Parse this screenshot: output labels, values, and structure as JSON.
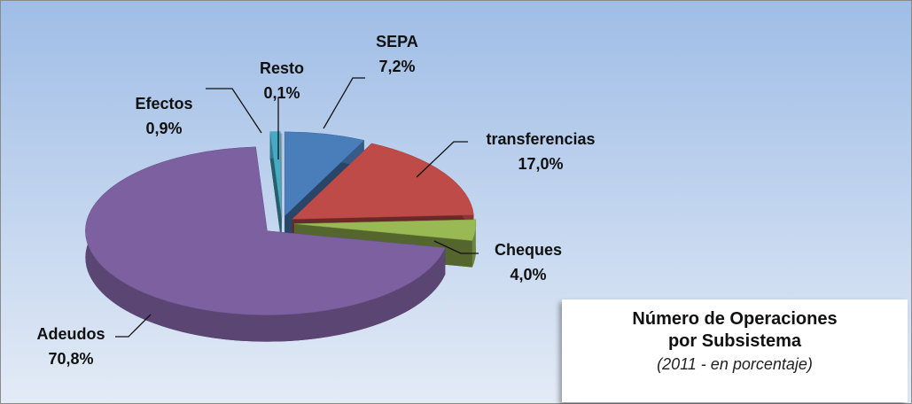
{
  "chart_data": {
    "type": "pie",
    "title": "Número de Operaciones por Subsistema",
    "subtitle": "(2011 - en porcentaje)",
    "categories": [
      "SEPA",
      "transferencias",
      "Cheques",
      "Adeudos",
      "Efectos",
      "Resto"
    ],
    "values": [
      7.2,
      17.0,
      4.0,
      70.8,
      0.9,
      0.1
    ],
    "value_labels": [
      "7,2%",
      "17,0%",
      "4,0%",
      "70,8%",
      "0,9%",
      "0,1%"
    ],
    "colors": [
      "#4a7ebb",
      "#be4b48",
      "#98b954",
      "#7d60a0",
      "#46aac5",
      "#a6a6a6"
    ]
  }
}
